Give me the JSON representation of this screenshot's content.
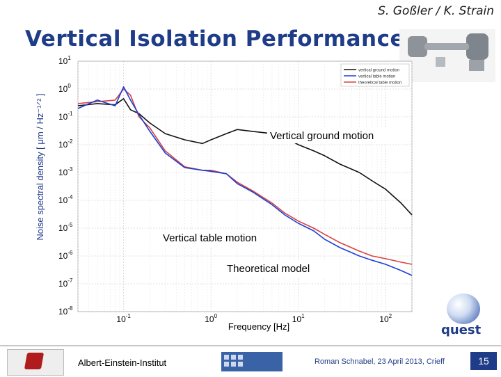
{
  "header": {
    "authors": "S. Goßler / K. Strain",
    "title": "Vertical Isolation Performance"
  },
  "chart_data": {
    "type": "line",
    "xlabel": "Frequency [Hz]",
    "ylabel": "Noise spectral density [ μm / Hz⁻¹ᐟ² ]",
    "x_scale": "log",
    "y_scale": "log",
    "xlim": [
      0.03,
      200
    ],
    "ylim": [
      1e-08,
      10
    ],
    "x_ticks": [
      {
        "value": 0.1,
        "base": "10",
        "exp": "-1"
      },
      {
        "value": 1,
        "base": "10",
        "exp": "0"
      },
      {
        "value": 10,
        "base": "10",
        "exp": "1"
      },
      {
        "value": 100,
        "base": "10",
        "exp": "2"
      }
    ],
    "y_ticks": [
      {
        "value": 10,
        "base": "10",
        "exp": "1"
      },
      {
        "value": 1,
        "base": "10",
        "exp": "0"
      },
      {
        "value": 0.1,
        "base": "10",
        "exp": "-1"
      },
      {
        "value": 0.01,
        "base": "10",
        "exp": "-2"
      },
      {
        "value": 0.001,
        "base": "10",
        "exp": "-3"
      },
      {
        "value": 0.0001,
        "base": "10",
        "exp": "-4"
      },
      {
        "value": 1e-05,
        "base": "10",
        "exp": "-5"
      },
      {
        "value": 1e-06,
        "base": "10",
        "exp": "-6"
      },
      {
        "value": 1e-07,
        "base": "10",
        "exp": "-7"
      },
      {
        "value": 1e-08,
        "base": "10",
        "exp": "-8"
      }
    ],
    "grid": true,
    "legend_position": "top-right",
    "series": [
      {
        "name": "vertical ground motion",
        "color": "#111111",
        "x": [
          0.03,
          0.05,
          0.08,
          0.1,
          0.12,
          0.15,
          0.2,
          0.3,
          0.5,
          0.8,
          1,
          1.5,
          2,
          3,
          5,
          7,
          10,
          15,
          20,
          30,
          50,
          70,
          100,
          150,
          200
        ],
        "y": [
          0.25,
          0.3,
          0.27,
          0.45,
          0.18,
          0.13,
          0.06,
          0.025,
          0.015,
          0.011,
          0.015,
          0.025,
          0.035,
          0.03,
          0.025,
          0.018,
          0.01,
          0.006,
          0.004,
          0.002,
          0.001,
          0.0005,
          0.00025,
          8e-05,
          3e-05
        ]
      },
      {
        "name": "vertical table motion",
        "color": "#1a3fd6",
        "x": [
          0.03,
          0.05,
          0.08,
          0.1,
          0.12,
          0.15,
          0.2,
          0.3,
          0.5,
          0.8,
          1,
          1.5,
          2,
          3,
          5,
          7,
          10,
          15,
          20,
          30,
          50,
          70,
          100,
          150,
          200
        ],
        "y": [
          0.2,
          0.4,
          0.25,
          1.2,
          0.4,
          0.12,
          0.03,
          0.005,
          0.0015,
          0.0012,
          0.0011,
          0.0009,
          0.0004,
          0.0002,
          7e-05,
          3e-05,
          1.5e-05,
          8e-06,
          4e-06,
          2e-06,
          1e-06,
          7e-07,
          5e-07,
          3e-07,
          2e-07
        ]
      },
      {
        "name": "theoretical table motion",
        "color": "#d94040",
        "x": [
          0.03,
          0.05,
          0.08,
          0.1,
          0.12,
          0.15,
          0.2,
          0.3,
          0.5,
          0.8,
          1,
          1.5,
          2,
          3,
          5,
          7,
          10,
          15,
          20,
          30,
          50,
          70,
          100,
          150,
          200
        ],
        "y": [
          0.3,
          0.35,
          0.4,
          1.0,
          0.6,
          0.1,
          0.04,
          0.006,
          0.0016,
          0.0012,
          0.0012,
          0.0009,
          0.00045,
          0.00022,
          8e-05,
          3.5e-05,
          1.8e-05,
          1e-05,
          6e-06,
          3e-06,
          1.5e-06,
          1e-06,
          8e-07,
          6e-07,
          5e-07
        ]
      }
    ],
    "annotations": [
      {
        "text": "Vertical ground motion",
        "series": 0
      },
      {
        "text": "Vertical table motion",
        "series": 1
      },
      {
        "text": "Theoretical model",
        "series": 2
      }
    ]
  },
  "footer": {
    "institute": "Albert-Einstein-Institut",
    "conference": "Roman Schnabel, 23 April 2013, Crieff",
    "page": "15",
    "quest_logo": "quest"
  }
}
